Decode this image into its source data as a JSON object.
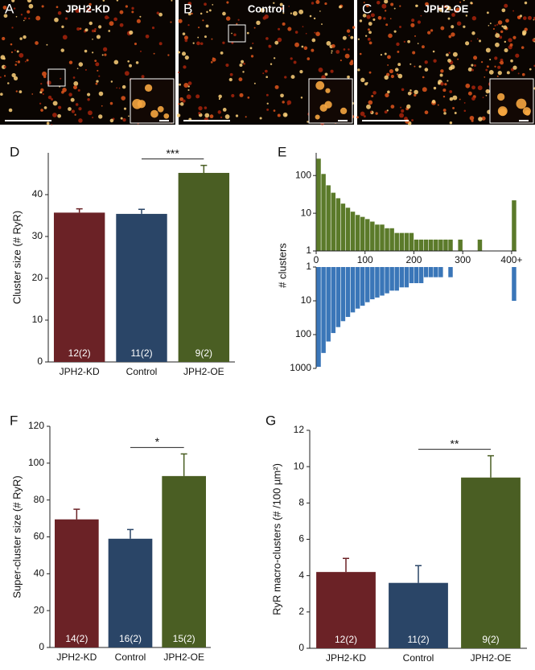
{
  "images": [
    {
      "panel_label": "A",
      "title": "JPH2-KD"
    },
    {
      "panel_label": "B",
      "title": "Control"
    },
    {
      "panel_label": "C",
      "title": "JPH2-OE"
    }
  ],
  "chart_data": [
    {
      "type": "bar",
      "panel_label": "D",
      "ylabel": "Cluster size (# RyR)",
      "categories": [
        "JPH2-KD",
        "Control",
        "JPH2-OE"
      ],
      "values": [
        35.7,
        35.4,
        45.2
      ],
      "errors": [
        0.9,
        1.1,
        1.8
      ],
      "bar_labels": [
        "12(2)",
        "11(2)",
        "9(2)"
      ],
      "colors": [
        "#6b2226",
        "#2a4567",
        "#4a5e23"
      ],
      "ylim": [
        0,
        50
      ],
      "yticks": [
        0,
        10,
        20,
        30,
        40
      ],
      "significance": "***"
    },
    {
      "type": "mirrored-histogram",
      "panel_label": "E",
      "ylabel": "# clusters",
      "log_y": true,
      "bins": [
        0,
        10,
        20,
        30,
        40,
        50,
        60,
        70,
        80,
        90,
        100,
        110,
        120,
        130,
        140,
        150,
        160,
        170,
        180,
        190,
        200,
        210,
        220,
        230,
        240,
        250,
        260,
        270,
        280,
        290,
        300,
        310,
        320,
        330,
        340,
        350,
        360,
        370,
        380,
        390,
        400,
        410
      ],
      "xlim": [
        0,
        410
      ],
      "xticks": [
        0,
        100,
        200,
        300,
        {
          "value": 400,
          "label": "400+"
        }
      ],
      "top": {
        "color": "#5b7a2a",
        "ylim": [
          1,
          400
        ],
        "yticks": [
          1,
          10,
          100
        ],
        "values": [
          280,
          110,
          55,
          35,
          25,
          18,
          14,
          11,
          9,
          8,
          7,
          6,
          5,
          5,
          4,
          4,
          3,
          3,
          3,
          3,
          2,
          2,
          2,
          2,
          2,
          2,
          2,
          2,
          1,
          2,
          1,
          1,
          1,
          2,
          1,
          1,
          1,
          1,
          1,
          1,
          22
        ]
      },
      "bottom": {
        "color": "#3a76b8",
        "ylim": [
          1,
          1000
        ],
        "yticks": [
          1,
          10,
          100,
          1000
        ],
        "values": [
          900,
          350,
          160,
          90,
          60,
          40,
          30,
          22,
          17,
          14,
          11,
          9,
          8,
          7,
          6,
          5,
          5,
          4,
          4,
          3,
          3,
          3,
          2,
          2,
          2,
          2,
          1,
          2,
          1,
          1,
          1,
          1,
          1,
          1,
          1,
          1,
          1,
          1,
          1,
          1,
          10
        ]
      }
    },
    {
      "type": "bar",
      "panel_label": "F",
      "ylabel": "Super-cluster size (# RyR)",
      "categories": [
        "JPH2-KD",
        "Control",
        "JPH2-OE"
      ],
      "values": [
        69.5,
        59,
        93
      ],
      "errors": [
        5.5,
        5,
        12
      ],
      "bar_labels": [
        "14(2)",
        "16(2)",
        "15(2)"
      ],
      "colors": [
        "#6b2226",
        "#2a4567",
        "#4a5e23"
      ],
      "ylim": [
        0,
        120
      ],
      "yticks": [
        0,
        20,
        40,
        60,
        80,
        100,
        120
      ],
      "significance": "*"
    },
    {
      "type": "bar",
      "panel_label": "G",
      "ylabel": "RyR macro-clusters (# /100 µm²)",
      "categories": [
        "JPH2-KD",
        "Control",
        "JPH2-OE"
      ],
      "values": [
        4.2,
        3.6,
        9.4
      ],
      "errors": [
        0.75,
        0.95,
        1.2
      ],
      "bar_labels": [
        "12(2)",
        "11(2)",
        "9(2)"
      ],
      "colors": [
        "#6b2226",
        "#2a4567",
        "#4a5e23"
      ],
      "ylim": [
        0,
        12
      ],
      "yticks": [
        0,
        2,
        4,
        6,
        8,
        10,
        12
      ],
      "significance": "**"
    }
  ]
}
